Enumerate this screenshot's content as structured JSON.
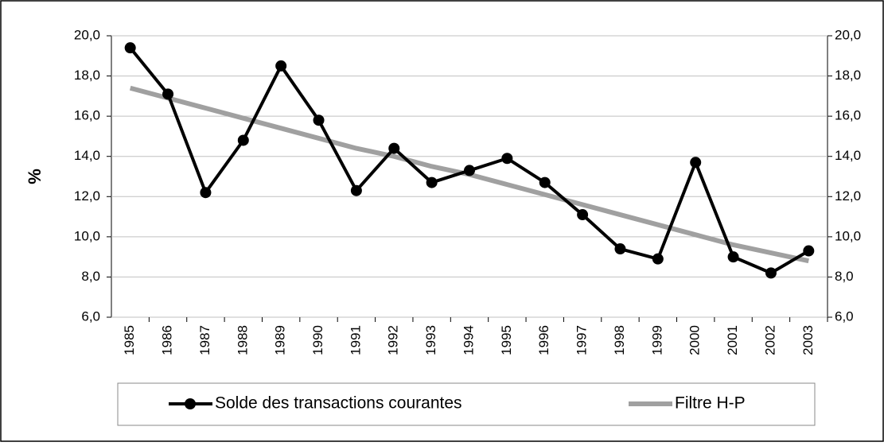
{
  "chart_data": {
    "type": "line",
    "y_label": "%",
    "categories": [
      "1985",
      "1986",
      "1987",
      "1988",
      "1989",
      "1990",
      "1991",
      "1992",
      "1993",
      "1994",
      "1995",
      "1996",
      "1997",
      "1998",
      "1999",
      "2000",
      "2001",
      "2002",
      "2003"
    ],
    "series": [
      {
        "name": "Solde des transactions courantes",
        "color": "#000000",
        "marker": "circle",
        "values": [
          19.4,
          17.1,
          12.2,
          14.8,
          18.5,
          15.8,
          12.3,
          14.4,
          12.7,
          13.3,
          13.9,
          12.7,
          11.1,
          9.4,
          8.9,
          13.7,
          9.0,
          8.2,
          9.3
        ]
      },
      {
        "name": "Filtre H-P",
        "color": "#a0a0a0",
        "marker": "none",
        "values": [
          17.4,
          16.9,
          16.4,
          15.9,
          15.4,
          14.9,
          14.4,
          14.0,
          13.5,
          13.1,
          12.6,
          12.1,
          11.6,
          11.1,
          10.6,
          10.1,
          9.6,
          9.2,
          8.8
        ]
      }
    ],
    "ylim": [
      6,
      20
    ],
    "yticks": [
      {
        "value": 6,
        "label": "6,0"
      },
      {
        "value": 8,
        "label": "8,0"
      },
      {
        "value": 10,
        "label": "10,0"
      },
      {
        "value": 12,
        "label": "12,0"
      },
      {
        "value": 14,
        "label": "14,0"
      },
      {
        "value": 16,
        "label": "16,0"
      },
      {
        "value": 18,
        "label": "18,0"
      },
      {
        "value": 20,
        "label": "20,0"
      }
    ],
    "y2lim": [
      6,
      20
    ],
    "y2ticks": [
      {
        "value": 6,
        "label": "6,0"
      },
      {
        "value": 8,
        "label": "8,0"
      },
      {
        "value": 10,
        "label": "10,0"
      },
      {
        "value": 12,
        "label": "12,0"
      },
      {
        "value": 14,
        "label": "14,0"
      },
      {
        "value": 16,
        "label": "16,0"
      },
      {
        "value": 18,
        "label": "18,0"
      },
      {
        "value": 20,
        "label": "20,0"
      }
    ],
    "grid": true,
    "legend": "bottom"
  }
}
